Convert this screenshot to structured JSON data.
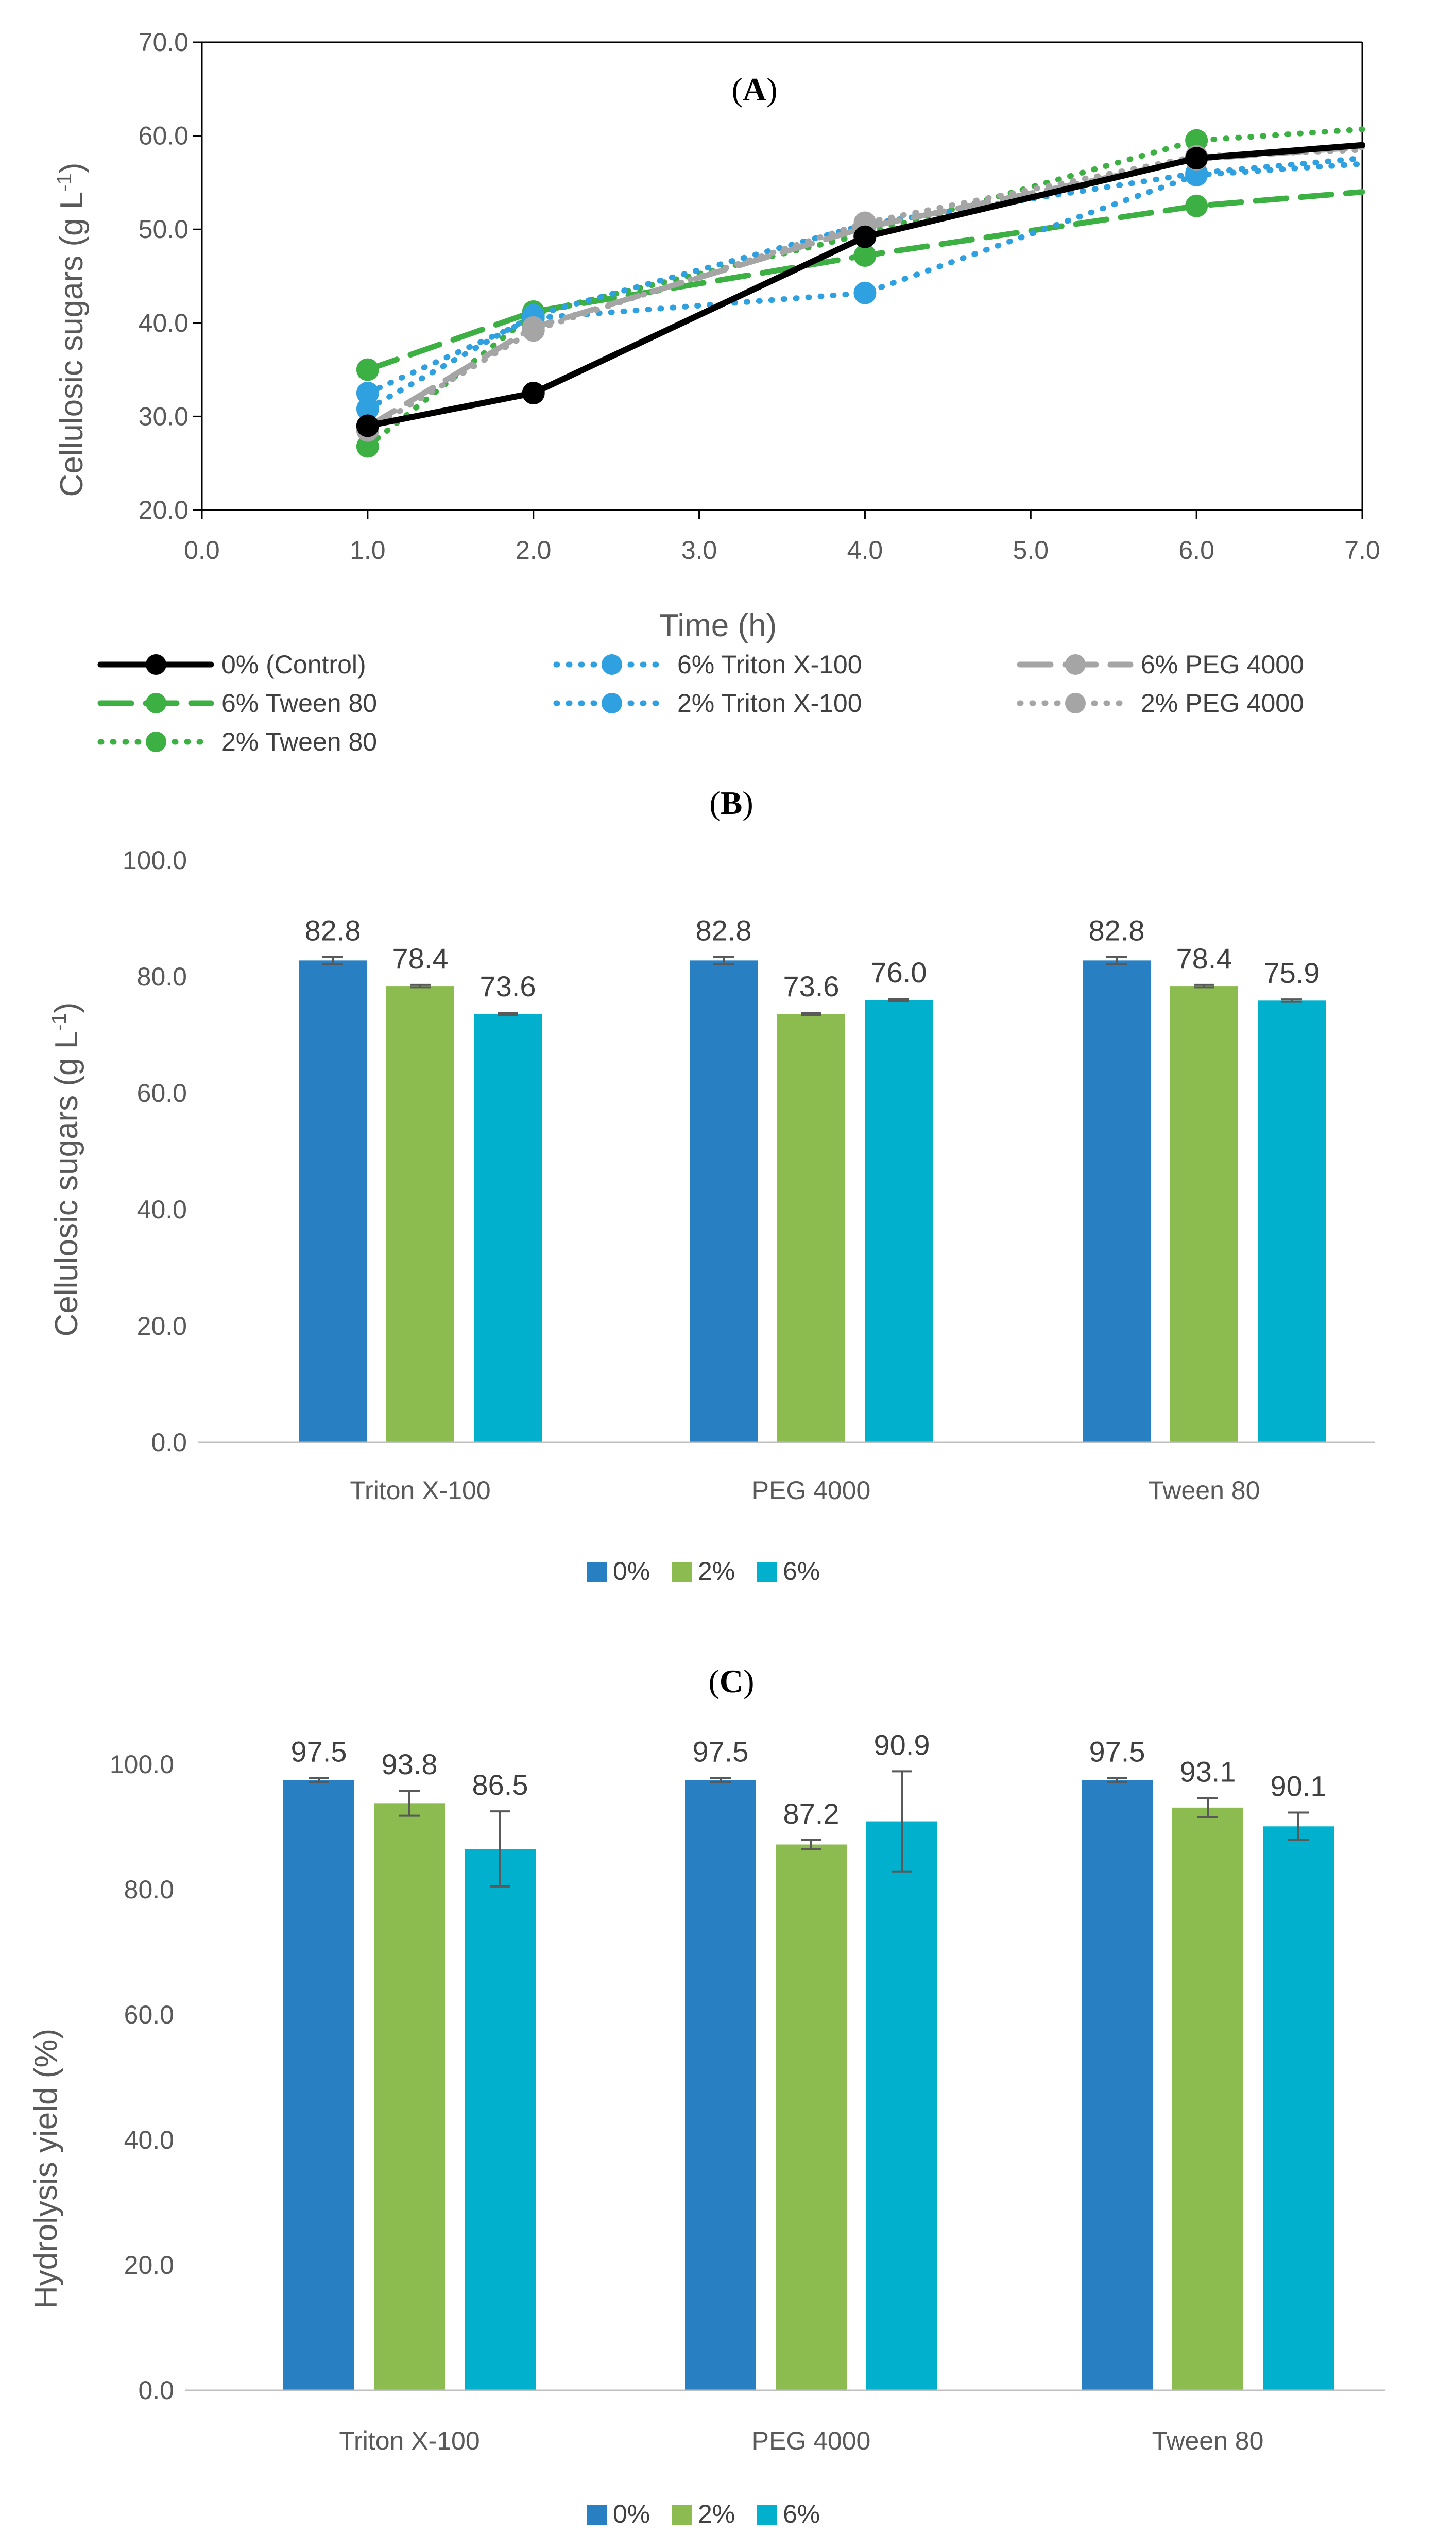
{
  "chart_data": [
    {
      "type": "line",
      "panel_label": "(A)",
      "panel_label_parts": [
        "(",
        "A",
        ")"
      ],
      "xlabel": "Time (h)",
      "ylabel": "Cellulosic sugars (g L",
      "ylabel_sup": "-1",
      "ylabel_close": ")",
      "xlim": [
        0,
        7
      ],
      "ylim": [
        20,
        70
      ],
      "xticks": [
        "0.0",
        "1.0",
        "2.0",
        "3.0",
        "4.0",
        "5.0",
        "6.0",
        "7.0"
      ],
      "yticks": [
        "20.0",
        "30.0",
        "40.0",
        "50.0",
        "60.0",
        "70.0"
      ],
      "x": [
        1,
        2,
        4,
        6,
        7
      ],
      "series": [
        {
          "name": "0% (Control)",
          "color": "#000000",
          "dash": "solid",
          "values": [
            29.0,
            32.5,
            49.2,
            57.6,
            59.0
          ]
        },
        {
          "name": "6% Tween 80",
          "color": "#3cb043",
          "dash": "dashed",
          "values": [
            35.0,
            41.2,
            47.2,
            52.5,
            54.0
          ]
        },
        {
          "name": "2% Tween 80",
          "color": "#3cb043",
          "dash": "dotted",
          "values": [
            26.8,
            41.0,
            49.5,
            59.5,
            60.7
          ]
        },
        {
          "name": "6% Triton X-100",
          "color": "#2fa0e0",
          "dash": "dotted",
          "values": [
            32.5,
            40.5,
            43.2,
            55.8,
            57.0
          ]
        },
        {
          "name": "2% Triton X-100",
          "color": "#2fa0e0",
          "dash": "dotted",
          "values": [
            30.8,
            40.8,
            50.5,
            56.0,
            57.6
          ]
        },
        {
          "name": "6% PEG 4000",
          "color": "#a5a5a5",
          "dash": "dashed",
          "values": [
            28.9,
            39.5,
            50.2,
            57.5,
            58.8
          ]
        },
        {
          "name": "2% PEG 4000",
          "color": "#a5a5a5",
          "dash": "dotted",
          "values": [
            28.5,
            39.2,
            50.7,
            57.8,
            58.5
          ]
        }
      ]
    },
    {
      "type": "bar",
      "panel_label": "(B)",
      "panel_label_parts": [
        "(",
        "B",
        ")"
      ],
      "ylabel": "Cellulosic sugars (g L",
      "ylabel_sup": "-1",
      "ylabel_close": ")",
      "ylim": [
        0,
        100
      ],
      "yticks": [
        "0.0",
        "20.0",
        "40.0",
        "60.0",
        "80.0",
        "100.0"
      ],
      "categories": [
        "Triton X-100",
        "PEG 4000",
        "Tween 80"
      ],
      "series": [
        {
          "name": "0%",
          "color": "#2880c2",
          "values": [
            82.8,
            82.8,
            82.8
          ],
          "labels": [
            "82.8",
            "82.8",
            "82.8"
          ],
          "errors": [
            0.6,
            0.6,
            0.6
          ]
        },
        {
          "name": "2%",
          "color": "#8cbb50",
          "values": [
            78.4,
            73.6,
            78.4
          ],
          "labels": [
            "78.4",
            "73.6",
            "78.4"
          ],
          "errors": [
            0.2,
            0.2,
            0.2
          ]
        },
        {
          "name": "6%",
          "color": "#00b0cc",
          "values": [
            73.6,
            76.0,
            75.9
          ],
          "labels": [
            "73.6",
            "76.0",
            "75.9"
          ],
          "errors": [
            0.2,
            0.2,
            0.2
          ]
        }
      ],
      "legend_position": "bottom"
    },
    {
      "type": "bar",
      "panel_label": "(C)",
      "panel_label_parts": [
        "(",
        "C",
        ")"
      ],
      "ylabel": "Hydrolysis yield (%)",
      "ylim": [
        0,
        100
      ],
      "yticks": [
        "0.0",
        "20.0",
        "40.0",
        "60.0",
        "80.0",
        "100.0"
      ],
      "categories": [
        "Triton X-100",
        "PEG 4000",
        "Tween 80"
      ],
      "series": [
        {
          "name": "0%",
          "color": "#2880c2",
          "values": [
            97.5,
            97.5,
            97.5
          ],
          "labels": [
            "97.5",
            "97.5",
            "97.5"
          ],
          "errors": [
            0.3,
            0.3,
            0.3
          ]
        },
        {
          "name": "2%",
          "color": "#8cbb50",
          "values": [
            93.8,
            87.2,
            93.1
          ],
          "labels": [
            "93.8",
            "87.2",
            "93.1"
          ],
          "errors": [
            2.0,
            0.7,
            1.5
          ]
        },
        {
          "name": "6%",
          "color": "#00b0cc",
          "values": [
            86.5,
            90.9,
            90.1
          ],
          "labels": [
            "86.5",
            "90.9",
            "90.1"
          ],
          "errors": [
            6.0,
            8.0,
            2.2
          ]
        }
      ],
      "legend_position": "bottom"
    }
  ]
}
